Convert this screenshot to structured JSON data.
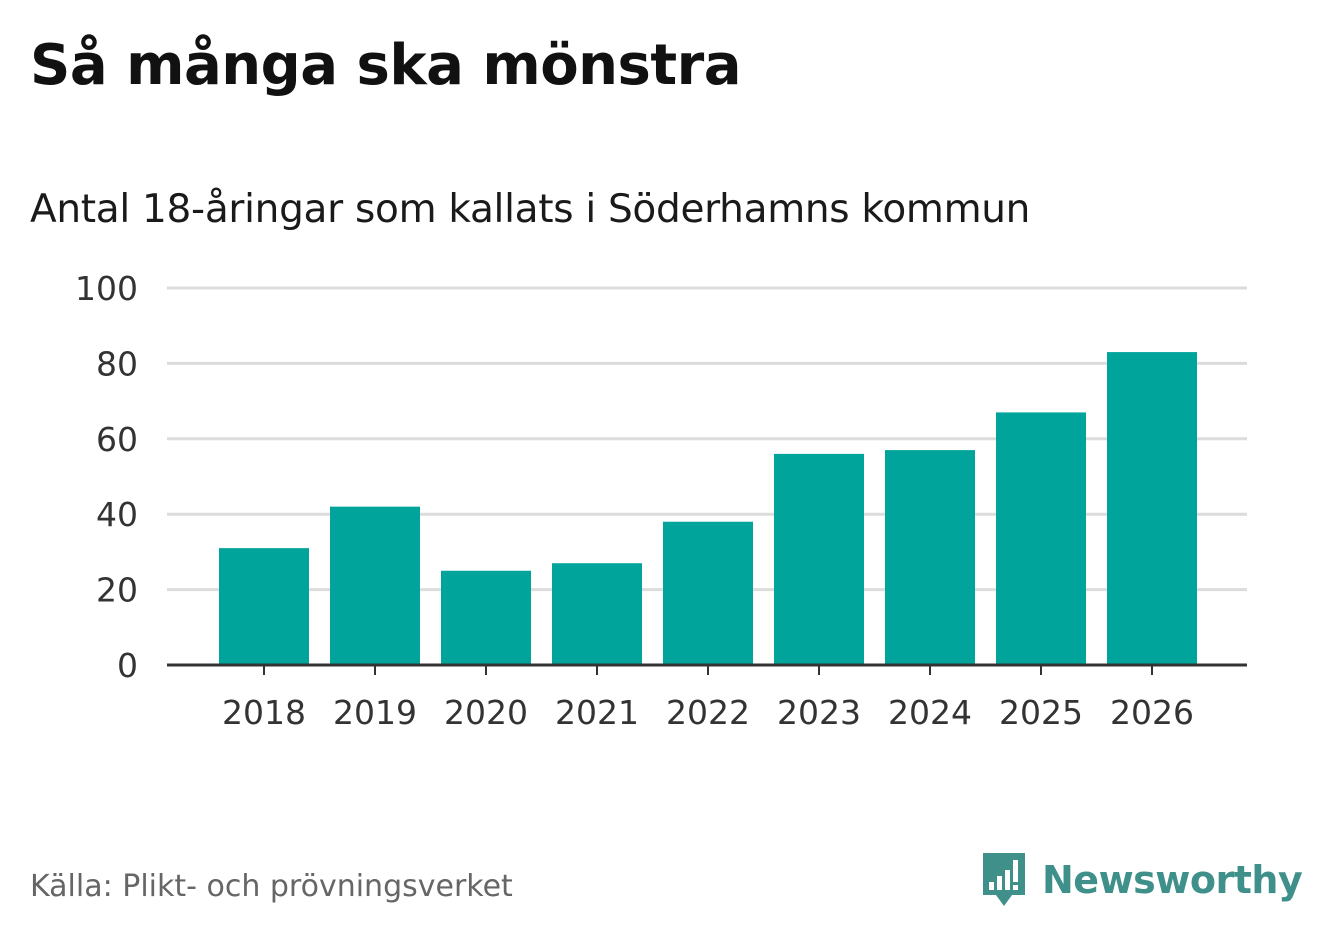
{
  "title": "Så många ska mönstra",
  "subtitle": "Antal 18-åringar som kallats i Söderhamns kommun",
  "source": "Källa: Plikt- och prövningsverket",
  "brand": {
    "name": "Newsworthy",
    "icon": "newsworthy-logo-icon",
    "color": "#3f8f8a"
  },
  "colors": {
    "bar": "#00a49a",
    "grid": "#dcdcdc",
    "axis": "#333333"
  },
  "chart_data": {
    "type": "bar",
    "title": "Så många ska mönstra",
    "subtitle": "Antal 18-åringar som kallats i Söderhamns kommun",
    "xlabel": "",
    "ylabel": "",
    "categories": [
      "2018",
      "2019",
      "2020",
      "2021",
      "2022",
      "2023",
      "2024",
      "2025",
      "2026"
    ],
    "values": [
      31,
      42,
      25,
      27,
      38,
      56,
      57,
      67,
      83
    ],
    "ylim": [
      0,
      100
    ],
    "yticks": [
      0,
      20,
      40,
      60,
      80,
      100
    ],
    "grid": true
  }
}
